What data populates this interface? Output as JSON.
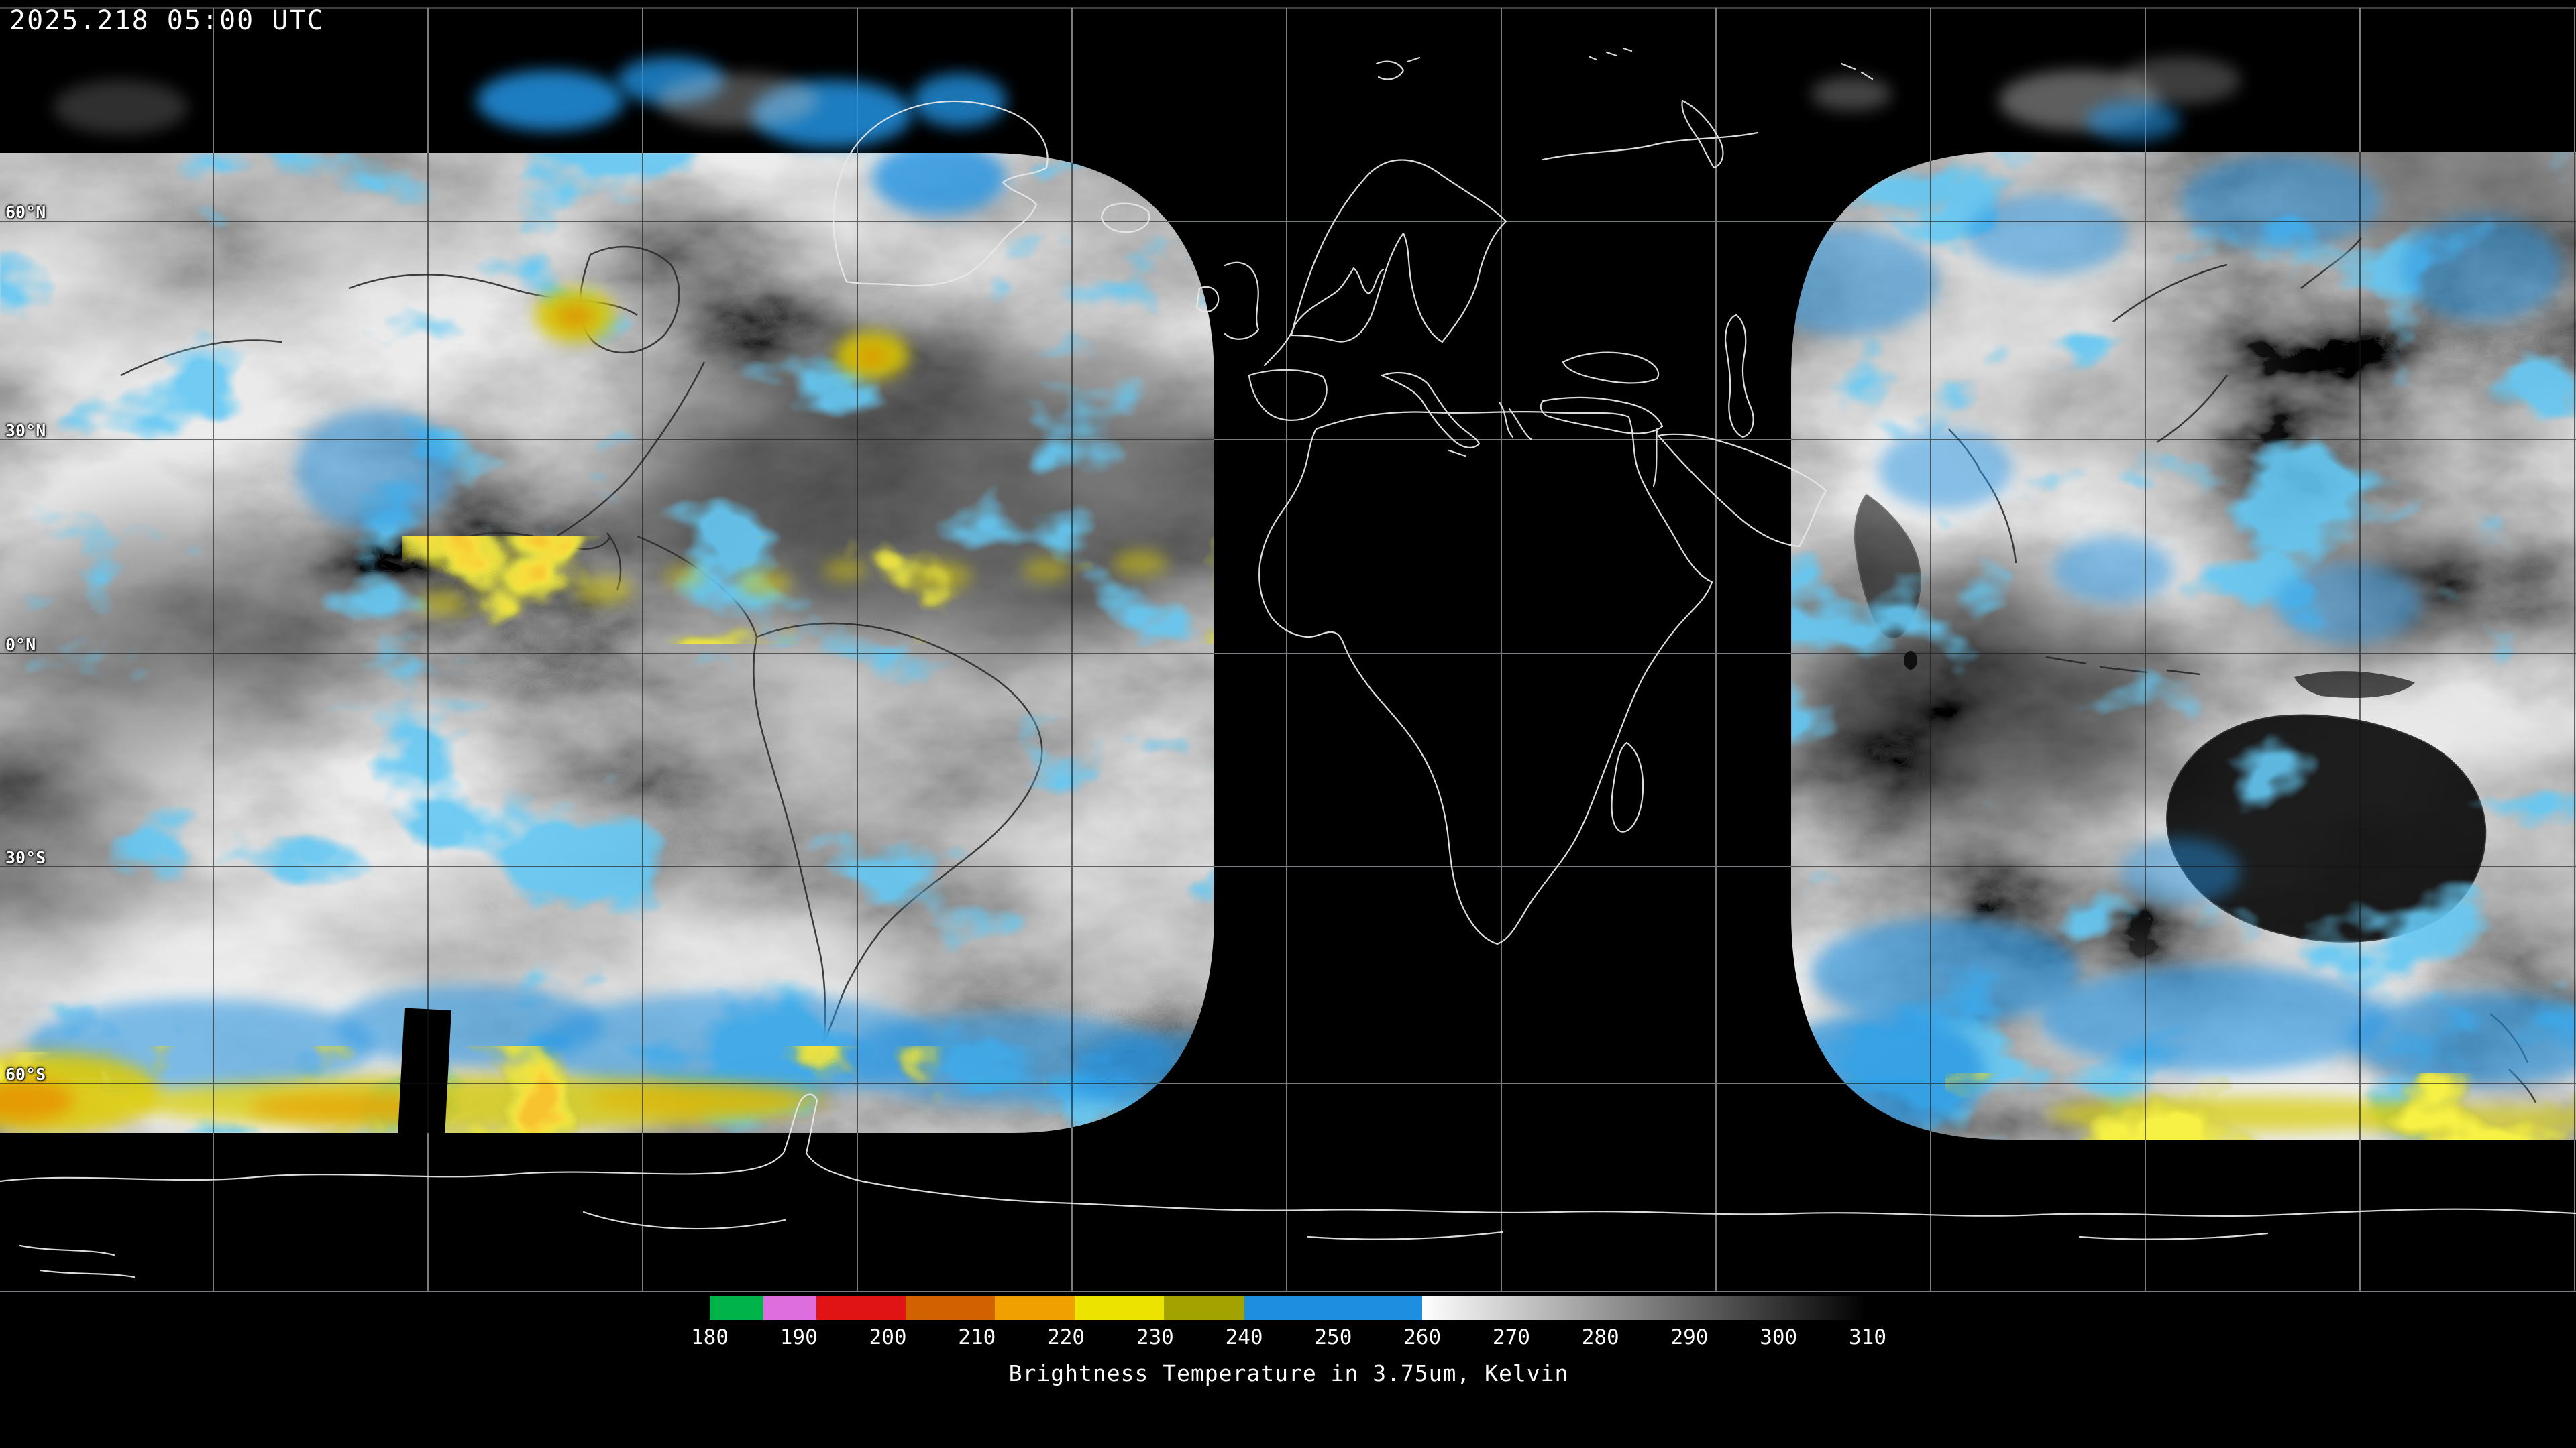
{
  "header": {
    "timestamp": "2025.218 05:00 UTC"
  },
  "map": {
    "latitude_labels": [
      "60°N",
      "30°N",
      "0°N",
      "30°S",
      "60°S"
    ],
    "background_color": "#000000",
    "coastline_color": "#e8e8e8",
    "cloud_palette": {
      "cold_cloud_blue": "#2293e2",
      "colder_cloud_olive": "#94940a",
      "colder_cloud_yellow": "#ede010",
      "coldest_cloud_orange": "#ed8c08"
    }
  },
  "colorbar": {
    "caption": "Brightness Temperature in 3.75um, Kelvin",
    "min": 180,
    "max": 310,
    "ticks": [
      "180",
      "190",
      "200",
      "210",
      "220",
      "230",
      "240",
      "250",
      "260",
      "270",
      "280",
      "290",
      "300",
      "310"
    ],
    "segments": [
      {
        "from": 180,
        "to": 186,
        "color": "#00b44a"
      },
      {
        "from": 186,
        "to": 192,
        "color": "#de6ede"
      },
      {
        "from": 192,
        "to": 202,
        "color": "#e01414"
      },
      {
        "from": 202,
        "to": 212,
        "color": "#d26200"
      },
      {
        "from": 212,
        "to": 221,
        "color": "#f0a000"
      },
      {
        "from": 221,
        "to": 231,
        "color": "#ece400"
      },
      {
        "from": 231,
        "to": 240,
        "color": "#a2a200"
      },
      {
        "from": 240,
        "to": 260,
        "color": "#1e8ee0"
      },
      {
        "from": 260,
        "to": 310,
        "gradient": [
          "#ffffff",
          "#000000"
        ]
      }
    ]
  }
}
